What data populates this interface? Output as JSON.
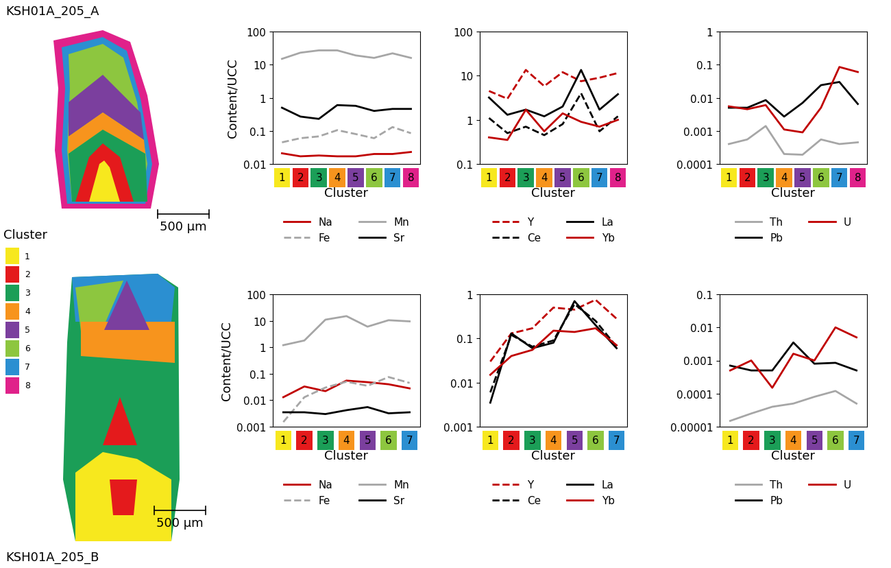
{
  "cluster_legend": {
    "title": "Cluster",
    "clusters": [
      {
        "label": "1",
        "color": "#f7e81e"
      },
      {
        "label": "2",
        "color": "#e41a1c"
      },
      {
        "label": "3",
        "color": "#1b9e57"
      },
      {
        "label": "4",
        "color": "#f7941d"
      },
      {
        "label": "5",
        "color": "#7b3f9e"
      },
      {
        "label": "6",
        "color": "#8dc63f"
      },
      {
        "label": "7",
        "color": "#2b8fd1"
      },
      {
        "label": "8",
        "color": "#e0218a"
      }
    ]
  },
  "maps": [
    {
      "name": "KSH01A_205_A",
      "scale_bar": "500 µm"
    },
    {
      "name": "KSH01A_205_B",
      "scale_bar": "500 µm"
    }
  ],
  "chart_data": [
    {
      "type": "line",
      "ylabel": "Content/UCC",
      "xlabel": "Cluster",
      "log": "y",
      "legend": "below",
      "categories": [
        "1",
        "2",
        "3",
        "4",
        "5",
        "6",
        "7",
        "8"
      ],
      "ylim": [
        0.01,
        100
      ],
      "yticks": [
        0.01,
        0.1,
        1,
        10,
        100
      ],
      "series": [
        {
          "name": "Na",
          "color": "#c00000",
          "line_style": "solid",
          "values": [
            0.021,
            0.017,
            0.018,
            0.017,
            0.017,
            0.02,
            0.02,
            0.023
          ]
        },
        {
          "name": "Fe",
          "color": "#a6a6a6",
          "line_style": "dashed",
          "values": [
            0.045,
            0.06,
            0.068,
            0.105,
            0.08,
            0.06,
            0.13,
            0.085
          ]
        },
        {
          "name": "Mn",
          "color": "#a6a6a6",
          "line_style": "solid",
          "values": [
            15,
            23,
            27,
            27,
            19,
            16,
            22,
            16
          ]
        },
        {
          "name": "Sr",
          "color": "#000000",
          "line_style": "solid",
          "values": [
            0.5,
            0.27,
            0.23,
            0.6,
            0.57,
            0.4,
            0.46,
            0.46
          ]
        }
      ]
    },
    {
      "type": "line",
      "xlabel": "Cluster",
      "log": "y",
      "legend": "below",
      "categories": [
        "1",
        "2",
        "3",
        "4",
        "5",
        "6",
        "7",
        "8"
      ],
      "ylim": [
        0.1,
        100
      ],
      "yticks": [
        0.1,
        1,
        10,
        100
      ],
      "series": [
        {
          "name": "Y",
          "color": "#c00000",
          "line_style": "dashed",
          "values": [
            4.5,
            3,
            13.5,
            5.8,
            12,
            7.5,
            9,
            11.5
          ]
        },
        {
          "name": "Ce",
          "color": "#000000",
          "line_style": "dashed",
          "values": [
            1.1,
            0.5,
            0.7,
            0.45,
            0.8,
            4,
            0.55,
            1.2
          ]
        },
        {
          "name": "La",
          "color": "#000000",
          "line_style": "solid",
          "values": [
            3.2,
            1.3,
            1.7,
            1.2,
            2,
            13.5,
            1.7,
            3.8
          ]
        },
        {
          "name": "Yb",
          "color": "#c00000",
          "line_style": "solid",
          "values": [
            0.4,
            0.35,
            1.7,
            0.55,
            1.4,
            0.9,
            0.7,
            1.0
          ]
        }
      ]
    },
    {
      "type": "line",
      "xlabel": "Cluster",
      "log": "y",
      "legend": "below",
      "categories": [
        "1",
        "2",
        "3",
        "4",
        "5",
        "6",
        "7",
        "8"
      ],
      "ylim": [
        0.0001,
        1
      ],
      "yticks": [
        0.0001,
        0.001,
        0.01,
        0.1,
        1
      ],
      "series": [
        {
          "name": "Th",
          "color": "#a6a6a6",
          "line_style": "solid",
          "values": [
            0.0004,
            0.00055,
            0.0014,
            0.0002,
            0.00019,
            0.00055,
            0.0004,
            0.00045
          ]
        },
        {
          "name": "Pb",
          "color": "#000000",
          "line_style": "solid",
          "values": [
            0.005,
            0.005,
            0.0085,
            0.0027,
            0.007,
            0.024,
            0.03,
            0.0065
          ]
        },
        {
          "name": "U",
          "color": "#c00000",
          "line_style": "solid",
          "values": [
            0.0055,
            0.0045,
            0.006,
            0.0011,
            0.0009,
            0.005,
            0.085,
            0.06
          ]
        }
      ]
    },
    {
      "type": "line",
      "ylabel": "Content/UCC",
      "xlabel": "Cluster",
      "log": "y",
      "legend": "below",
      "categories": [
        "1",
        "2",
        "3",
        "4",
        "5",
        "6",
        "7"
      ],
      "ylim": [
        0.001,
        100
      ],
      "yticks": [
        0.001,
        0.01,
        0.1,
        1,
        10,
        100
      ],
      "series": [
        {
          "name": "Na",
          "color": "#c00000",
          "line_style": "solid",
          "values": [
            0.013,
            0.033,
            0.022,
            0.055,
            0.048,
            0.04,
            0.028
          ]
        },
        {
          "name": "Fe",
          "color": "#a6a6a6",
          "line_style": "dashed",
          "values": [
            0.0015,
            0.013,
            0.03,
            0.05,
            0.035,
            0.075,
            0.045
          ]
        },
        {
          "name": "Mn",
          "color": "#a6a6a6",
          "line_style": "solid",
          "values": [
            1.2,
            1.8,
            11,
            15,
            6,
            10.5,
            9.5
          ]
        },
        {
          "name": "Sr",
          "color": "#000000",
          "line_style": "solid",
          "values": [
            0.0035,
            0.0035,
            0.003,
            0.0042,
            0.0055,
            0.0032,
            0.0035
          ]
        }
      ]
    },
    {
      "type": "line",
      "xlabel": "Cluster",
      "log": "y",
      "legend": "below",
      "categories": [
        "1",
        "2",
        "3",
        "4",
        "5",
        "6",
        "7"
      ],
      "ylim": [
        0.001,
        1
      ],
      "yticks": [
        0.001,
        0.01,
        0.1,
        1
      ],
      "series": [
        {
          "name": "Y",
          "color": "#c00000",
          "line_style": "dashed",
          "values": [
            0.03,
            0.13,
            0.17,
            0.5,
            0.45,
            0.75,
            0.28
          ]
        },
        {
          "name": "Ce",
          "color": "#000000",
          "line_style": "dashed",
          "values": [
            0.006,
            0.12,
            0.065,
            0.09,
            0.6,
            0.25,
            0.065
          ]
        },
        {
          "name": "La",
          "color": "#000000",
          "line_style": "solid",
          "values": [
            0.0035,
            0.13,
            0.06,
            0.08,
            0.7,
            0.2,
            0.06
          ]
        },
        {
          "name": "Yb",
          "color": "#c00000",
          "line_style": "solid",
          "values": [
            0.015,
            0.04,
            0.055,
            0.15,
            0.14,
            0.17,
            0.07
          ]
        }
      ]
    },
    {
      "type": "line",
      "xlabel": "Cluster",
      "log": "y",
      "legend": "below",
      "categories": [
        "1",
        "2",
        "3",
        "4",
        "5",
        "6",
        "7"
      ],
      "ylim": [
        1e-05,
        0.1
      ],
      "yticks": [
        {
          "value": 1e-05,
          "label": "0.00001"
        },
        0.0001,
        0.001,
        0.01,
        0.1
      ],
      "series": [
        {
          "name": "Th",
          "color": "#a6a6a6",
          "line_style": "solid",
          "values": [
            1.5e-05,
            2.5e-05,
            4e-05,
            5e-05,
            8e-05,
            0.00012,
            5e-05
          ]
        },
        {
          "name": "Pb",
          "color": "#000000",
          "line_style": "solid",
          "values": [
            0.0007,
            0.0005,
            0.0005,
            0.0035,
            0.0008,
            0.00085,
            0.0005
          ]
        },
        {
          "name": "U",
          "color": "#c00000",
          "line_style": "solid",
          "values": [
            0.0005,
            0.001,
            0.00015,
            0.0016,
            0.001,
            0.01,
            0.005
          ]
        }
      ]
    }
  ]
}
